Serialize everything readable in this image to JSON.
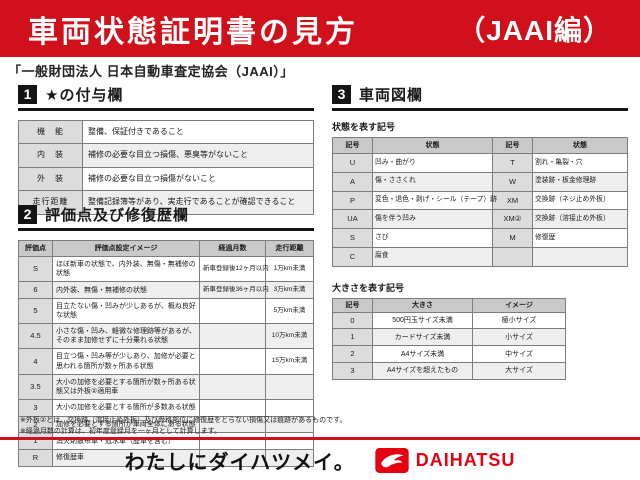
{
  "header": {
    "title": "車両状態証明書の見方",
    "edition": "（JAAI編）",
    "subtitle": "「一般財団法人 日本自動車査定協会（JAAI）」"
  },
  "section1": {
    "number": "1",
    "title": "★の付与欄",
    "rows": [
      [
        "機　能",
        "整備、保証付きであること"
      ],
      [
        "内　装",
        "補修の必要な目立つ損傷、悪臭等がないこと"
      ],
      [
        "外　装",
        "補修の必要な目立つ損傷がないこと"
      ],
      [
        "走行距離",
        "整備記録簿等があり、実走行であることが確認できること"
      ]
    ]
  },
  "section2": {
    "number": "2",
    "title": "評価点及び修復歴欄",
    "headers": [
      "評価点",
      "評価点設定イメージ",
      "経過月数",
      "走行距離"
    ],
    "rows": [
      [
        "S",
        "ほぼ新車の状態で、内外装、無傷・無補修の状態",
        "新車登録後12ヶ月以内",
        "1万km未満"
      ],
      [
        "6",
        "内外装、無傷・無補修の状態",
        "新車登録後36ヶ月以内",
        "3万km未満"
      ],
      [
        "5",
        "目立たない傷・凹みが少しあるが、概ね良好な状態",
        "",
        "5万km未満"
      ],
      [
        "4.5",
        "小さな傷・凹み、軽微な修理跡等があるが、そのまま加修せずに十分乗れる状態",
        "",
        "10万km未満"
      ],
      [
        "4",
        "目立つ傷・凹み等が少しあり、加修が必要と思われる箇所が数ヶ所ある状態",
        "",
        "15万km未満"
      ],
      [
        "3.5",
        "大小の加修を必要とする箇所が数ヶ所ある状態又は外板②適用車",
        "",
        ""
      ],
      [
        "3",
        "大小の加修を必要とする箇所が多数ある状態",
        "",
        ""
      ],
      [
        "2",
        "加修を必要とする箇所が車両全体にある状態",
        "",
        ""
      ],
      [
        "1",
        "消火剤散布車・冠水車（歴車を含む）",
        "",
        ""
      ],
      [
        "R",
        "修復歴車",
        "",
        ""
      ]
    ]
  },
  "section3": {
    "number": "3",
    "title": "車両図欄",
    "state_table": {
      "caption": "状態を表す記号",
      "headers": [
        "記号",
        "状態",
        "記号",
        "状態"
      ],
      "rows": [
        [
          "U",
          "凹み・曲がり",
          "T",
          "割れ・亀裂・穴"
        ],
        [
          "A",
          "傷・ささくれ",
          "W",
          "塗装跡・板金修理跡"
        ],
        [
          "P",
          "変色・退色・剥げ・シール（テープ）跡",
          "XM",
          "交換跡（ネジ止め外板）"
        ],
        [
          "UA",
          "傷を伴う凹み",
          "XM②",
          "交換跡（溶接止め外板）"
        ],
        [
          "S",
          "さび",
          "M",
          "修復歴"
        ],
        [
          "C",
          "腐食",
          "",
          ""
        ]
      ]
    },
    "size_table": {
      "caption": "大きさを表す記号",
      "headers": [
        "記号",
        "大きさ",
        "イメージ"
      ],
      "rows": [
        [
          "0",
          "500円玉サイズ未満",
          "極小サイズ"
        ],
        [
          "1",
          "カードサイズ未満",
          "小サイズ"
        ],
        [
          "2",
          "A4サイズ未満",
          "中サイズ"
        ],
        [
          "3",
          "A4サイズを超えたもの",
          "大サイズ"
        ]
      ]
    }
  },
  "notes": {
    "note1": "※外板②とは、交換跡（溶接止め外板）及び骨格部位に修復歴をとらない損傷又は痕跡があるものです。",
    "note2": "※経過月数の計算は、初年度登録月を一ヶ月として計算します。"
  },
  "footer": {
    "slogan": "わたしにダイハツメイ。",
    "brand": "DAIHATSU"
  },
  "colors": {
    "banner_red": "#d0111b",
    "brand_red": "#e50012",
    "header_gray": "#c9c9c9",
    "label_gray": "#dcdcdc"
  }
}
